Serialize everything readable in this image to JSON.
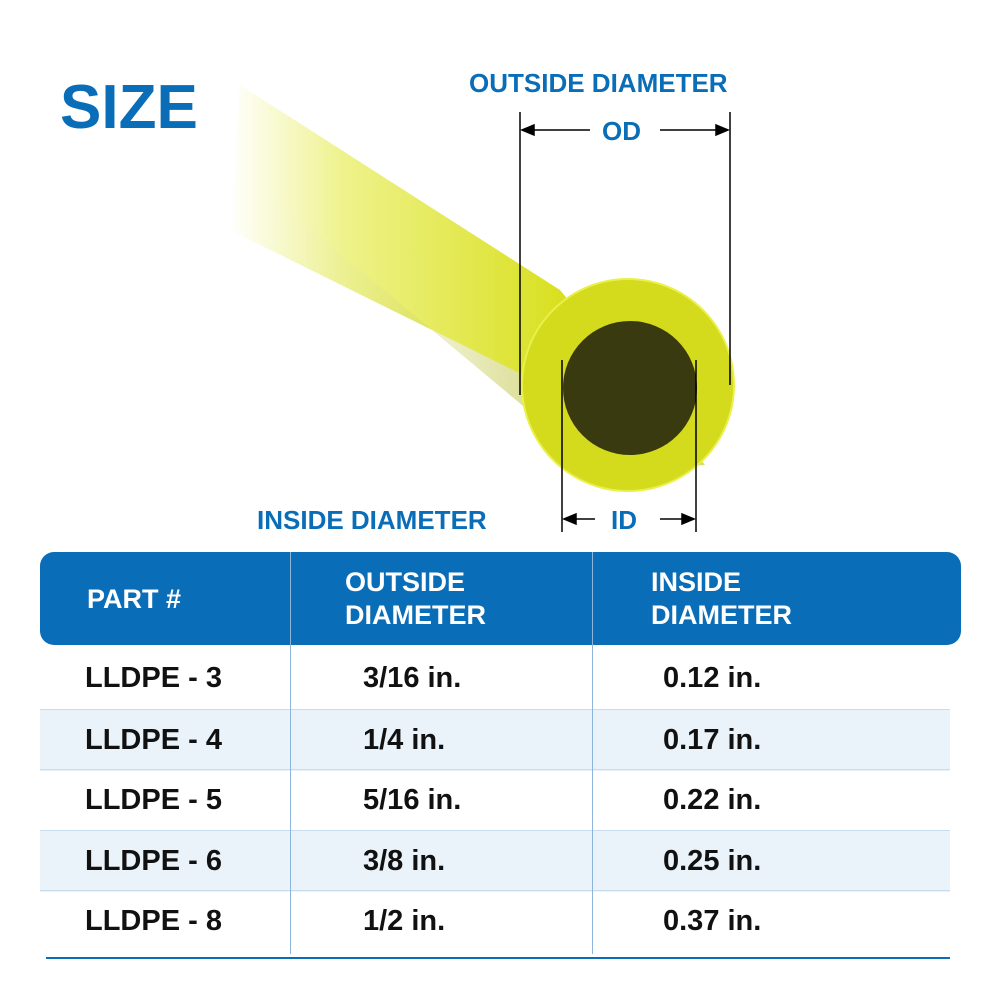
{
  "title": "SIZE",
  "diagram": {
    "outside_label": "OUTSIDE DIAMETER",
    "od_abbr": "OD",
    "inside_label": "INSIDE DIAMETER",
    "id_abbr": "ID",
    "tube_color": "#d9e021"
  },
  "table": {
    "headers": [
      {
        "line1": "PART #",
        "line2": ""
      },
      {
        "line1": "OUTSIDE",
        "line2": "DIAMETER"
      },
      {
        "line1": "INSIDE",
        "line2": "DIAMETER"
      }
    ],
    "rows": [
      {
        "part": "LLDPE - 3",
        "od": "3/16 in.",
        "id": "0.12 in."
      },
      {
        "part": "LLDPE - 4",
        "od": "1/4 in.",
        "id": "0.17 in."
      },
      {
        "part": "LLDPE - 5",
        "od": "5/16 in.",
        "id": "0.22 in."
      },
      {
        "part": "LLDPE - 6",
        "od": "3/8 in.",
        "id": "0.25 in."
      },
      {
        "part": "LLDPE - 8",
        "od": "1/2 in.",
        "id": "0.37 in."
      }
    ],
    "header_color": "#0a6db8",
    "alt_row_color": "#eaf2fa"
  }
}
